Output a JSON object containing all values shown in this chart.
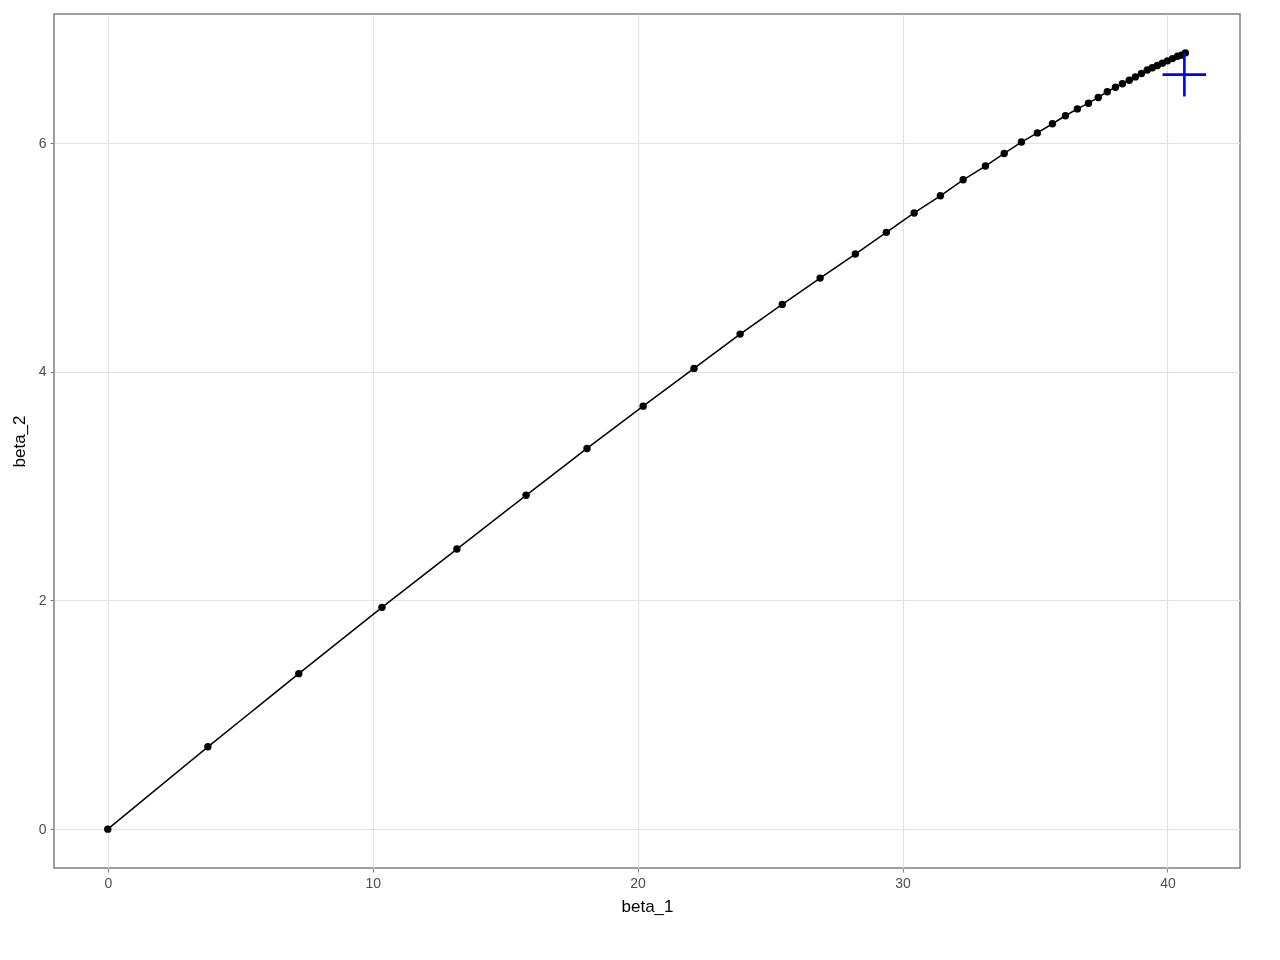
{
  "chart_data": {
    "type": "line",
    "xlabel": "beta_1",
    "ylabel": "beta_2",
    "xlim": [
      -2.03,
      42.74
    ],
    "ylim": [
      -0.34,
      7.13
    ],
    "xticks": [
      0,
      10,
      20,
      30,
      40
    ],
    "yticks": [
      0,
      2,
      4,
      6
    ],
    "grid": true,
    "marker": "circle",
    "line_style": "solid",
    "series": [
      {
        "color": "#000000",
        "x": [
          0,
          3.78,
          7.21,
          10.35,
          13.18,
          15.79,
          18.09,
          20.21,
          22.13,
          23.87,
          25.46,
          26.89,
          28.22,
          29.39,
          30.44,
          31.43,
          32.29,
          33.13,
          33.84,
          34.49,
          35.09,
          35.66,
          36.15,
          36.6,
          37.02,
          37.39,
          37.73,
          38.04,
          38.3,
          38.56,
          38.79,
          39.02,
          39.24,
          39.43,
          39.62,
          39.81,
          40.0,
          40.19,
          40.38,
          40.53,
          40.68
        ],
        "values": [
          0,
          0.72,
          1.36,
          1.94,
          2.45,
          2.92,
          3.33,
          3.7,
          4.03,
          4.33,
          4.59,
          4.82,
          5.03,
          5.22,
          5.39,
          5.54,
          5.68,
          5.8,
          5.91,
          6.01,
          6.09,
          6.17,
          6.24,
          6.3,
          6.35,
          6.4,
          6.45,
          6.49,
          6.52,
          6.55,
          6.58,
          6.61,
          6.64,
          6.66,
          6.68,
          6.7,
          6.72,
          6.74,
          6.76,
          6.77,
          6.79
        ]
      },
      {
        "type": "scatter",
        "marker": "cross",
        "color": "#0000ff",
        "x": [
          40.64
        ],
        "values": [
          6.6
        ]
      }
    ]
  }
}
